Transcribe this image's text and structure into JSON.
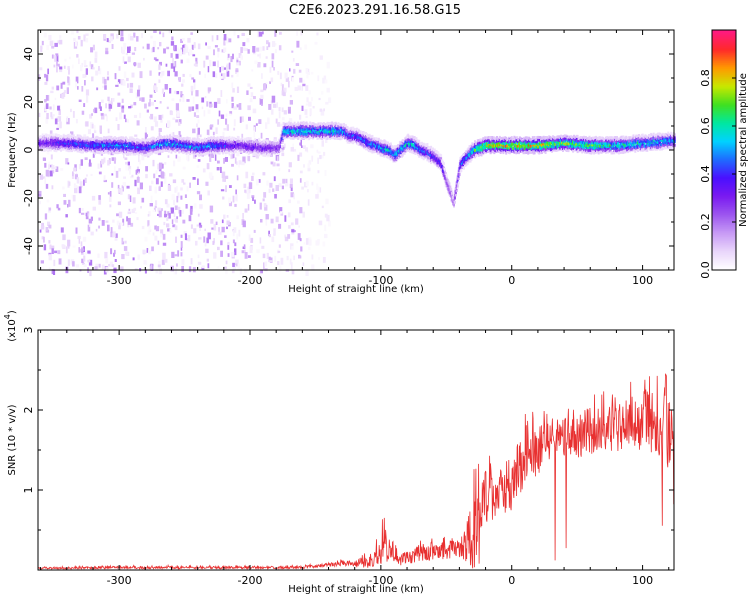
{
  "title": "C2E6.2023.291.16.58.G15",
  "colors": {
    "background": "#ffffff",
    "axis": "#000000",
    "snr_line": "#e83030",
    "colormap": [
      "#ffffff",
      "#e9d5fb",
      "#c79af5",
      "#9c56ef",
      "#7a1af0",
      "#4a10ff",
      "#1f6bff",
      "#00d2ff",
      "#00e8a0",
      "#40e020",
      "#c8e800",
      "#ff9a00",
      "#ff2a2a",
      "#ff1a80"
    ]
  },
  "chart_data": [
    {
      "type": "heatmap",
      "title": "C2E6.2023.291.16.58.G15",
      "xlabel": "Height of straight line (km)",
      "ylabel": "Frequency (Hz)",
      "xlim": [
        -362,
        124
      ],
      "ylim": [
        -50,
        50
      ],
      "x_ticks": [
        -300,
        -200,
        -100,
        0,
        100
      ],
      "x_tick_labels": [
        "-300",
        "-200",
        "-100",
        "0",
        "100"
      ],
      "y_ticks": [
        -40,
        -20,
        0,
        20,
        40
      ],
      "y_tick_labels": [
        "-40",
        "-20",
        "0",
        "20",
        "40"
      ],
      "colorbar": {
        "label": "Normalized spectral amplitude",
        "range": [
          0,
          1
        ],
        "ticks": [
          0.0,
          0.2,
          0.4,
          0.6,
          0.8
        ],
        "tick_labels": [
          "0.0",
          "0.2",
          "0.4",
          "0.6",
          "0.8"
        ],
        "colormap": "rainbow (white-violet-blue-cyan-green-yellow-red-magenta)"
      },
      "noise_regions": [
        {
          "x_range": [
            -362,
            -160
          ],
          "amplitude_range": [
            0.0,
            0.2
          ]
        },
        {
          "x_range": [
            -160,
            -140
          ],
          "amplitude_range": [
            0.0,
            0.05
          ]
        }
      ],
      "ridge": {
        "x": [
          -355,
          -340,
          -320,
          -300,
          -280,
          -265,
          -250,
          -240,
          -230,
          -210,
          -190,
          -178,
          -175,
          -170,
          -160,
          -150,
          -140,
          -130,
          -125,
          -120,
          -110,
          -100,
          -95,
          -90,
          -80,
          -75,
          -70,
          -65,
          -60,
          -55,
          -52,
          -50,
          -48,
          -45,
          -40,
          -30,
          -20,
          0,
          20,
          40,
          60,
          80,
          100,
          124
        ],
        "frequency": [
          3,
          3,
          2,
          2,
          1,
          3,
          2,
          1,
          2,
          2,
          1,
          1,
          8,
          8,
          8,
          8,
          8,
          8,
          6,
          6,
          3,
          1,
          0,
          -2,
          3,
          2,
          0,
          -1,
          -3,
          -5,
          -10,
          -14,
          -17,
          -22,
          -6,
          0,
          2,
          2,
          2,
          3,
          2,
          2,
          3,
          4
        ],
        "amplitude": [
          0.35,
          0.45,
          0.5,
          0.55,
          0.45,
          0.55,
          0.55,
          0.5,
          0.5,
          0.35,
          0.35,
          0.3,
          0.62,
          0.62,
          0.6,
          0.6,
          0.6,
          0.55,
          0.45,
          0.45,
          0.5,
          0.55,
          0.6,
          0.55,
          0.6,
          0.55,
          0.5,
          0.45,
          0.45,
          0.4,
          0.35,
          0.3,
          0.25,
          0.2,
          0.45,
          0.65,
          0.85,
          0.85,
          0.85,
          0.75,
          0.7,
          0.65,
          0.6,
          0.55
        ]
      }
    },
    {
      "type": "line",
      "title": "",
      "xlabel": "Height of straight line (km)",
      "ylabel": "SNR (10 * v/v)",
      "y_multiplier_label": "(x10",
      "y_multiplier_exponent": "4",
      "xlim": [
        -362,
        124
      ],
      "ylim": [
        0,
        3
      ],
      "x_ticks": [
        -300,
        -200,
        -100,
        0,
        100
      ],
      "x_tick_labels": [
        "-300",
        "-200",
        "-100",
        "0",
        "100"
      ],
      "y_ticks": [
        1,
        2,
        3
      ],
      "y_tick_labels": [
        "1",
        "2",
        "3"
      ],
      "series": [
        {
          "envelope": {
            "x": [
              -362,
              -300,
              -250,
              -200,
              -160,
              -140,
              -130,
              -120,
              -110,
              -100,
              -98,
              -95,
              -92,
              -90,
              -85,
              -80,
              -70,
              -60,
              -50,
              -40,
              -35,
              -30,
              -28,
              -26,
              -25,
              -24,
              -22,
              -20,
              -15,
              -10,
              -5,
              0,
              5,
              10,
              20,
              30,
              40,
              50,
              60,
              70,
              80,
              90,
              100,
              110,
              118,
              120,
              124
            ],
            "mean": [
              0.02,
              0.03,
              0.03,
              0.03,
              0.03,
              0.06,
              0.08,
              0.07,
              0.1,
              0.2,
              0.35,
              0.25,
              0.3,
              0.2,
              0.12,
              0.15,
              0.2,
              0.22,
              0.24,
              0.25,
              0.3,
              0.45,
              0.6,
              0.55,
              0.5,
              0.55,
              0.75,
              0.85,
              0.85,
              0.95,
              1.0,
              1.05,
              1.2,
              1.35,
              1.45,
              1.6,
              1.65,
              1.65,
              1.7,
              1.75,
              1.75,
              1.8,
              1.8,
              1.75,
              1.9,
              1.6,
              1.2
            ],
            "peak": [
              0.04,
              0.06,
              0.06,
              0.06,
              0.06,
              0.1,
              0.14,
              0.14,
              0.25,
              0.5,
              0.8,
              0.55,
              0.6,
              0.4,
              0.25,
              0.3,
              0.4,
              0.42,
              0.45,
              0.45,
              0.7,
              1.3,
              2.1,
              1.6,
              1.4,
              1.3,
              1.45,
              1.5,
              1.5,
              1.55,
              1.6,
              1.7,
              1.85,
              1.95,
              2.0,
              2.05,
              2.1,
              2.2,
              2.25,
              2.25,
              2.3,
              2.35,
              2.5,
              2.6,
              3.0,
              2.5,
              2.0
            ]
          }
        }
      ]
    }
  ]
}
